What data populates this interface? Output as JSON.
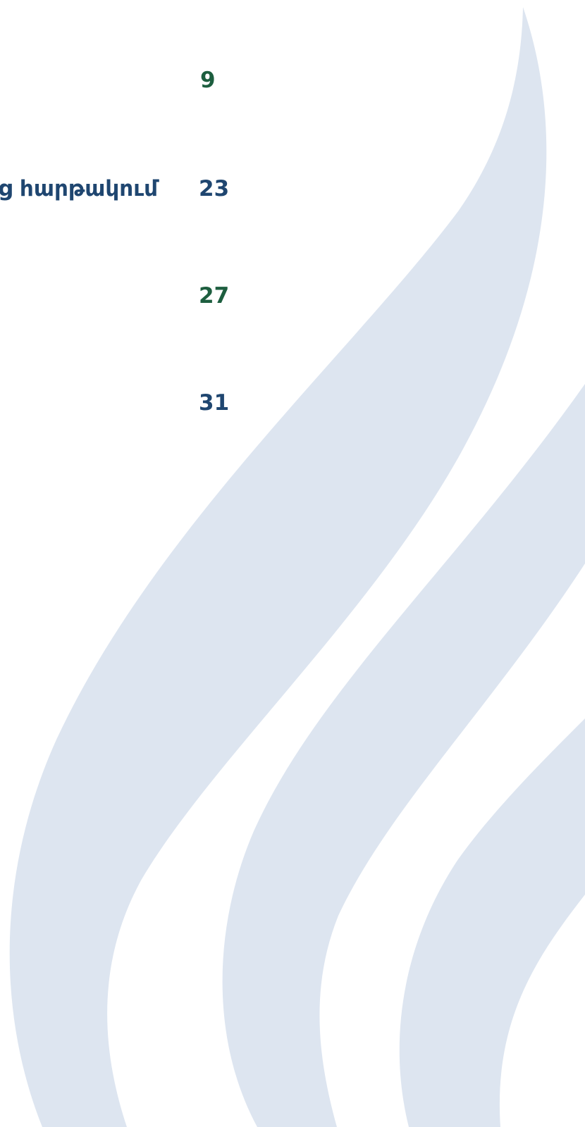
{
  "entries": [
    {
      "page": 9
    },
    {
      "title": "ց հարթակում",
      "page": 23
    },
    {
      "page": 27
    },
    {
      "page": 31
    }
  ]
}
